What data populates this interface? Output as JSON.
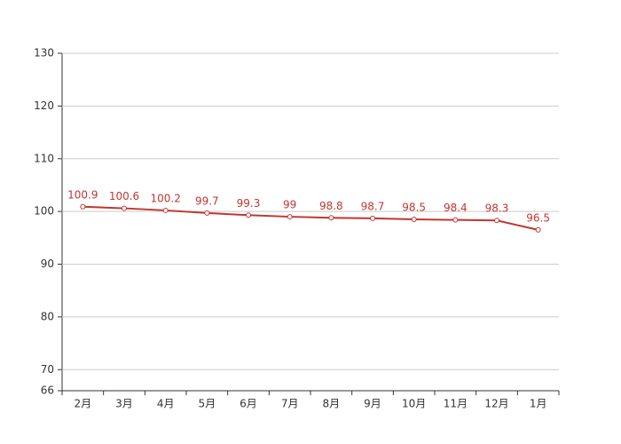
{
  "chart_data": {
    "type": "line",
    "categories": [
      "2月",
      "3月",
      "4月",
      "5月",
      "6月",
      "7月",
      "8月",
      "9月",
      "10月",
      "11月",
      "12月",
      "1月"
    ],
    "values": [
      100.9,
      100.6,
      100.2,
      99.7,
      99.3,
      99,
      98.8,
      98.7,
      98.5,
      98.4,
      98.3,
      96.5
    ],
    "color": "#c23531",
    "ylim": [
      66,
      130
    ],
    "yticks": [
      66,
      70,
      80,
      90,
      100,
      110,
      120,
      130
    ],
    "grid": true
  }
}
